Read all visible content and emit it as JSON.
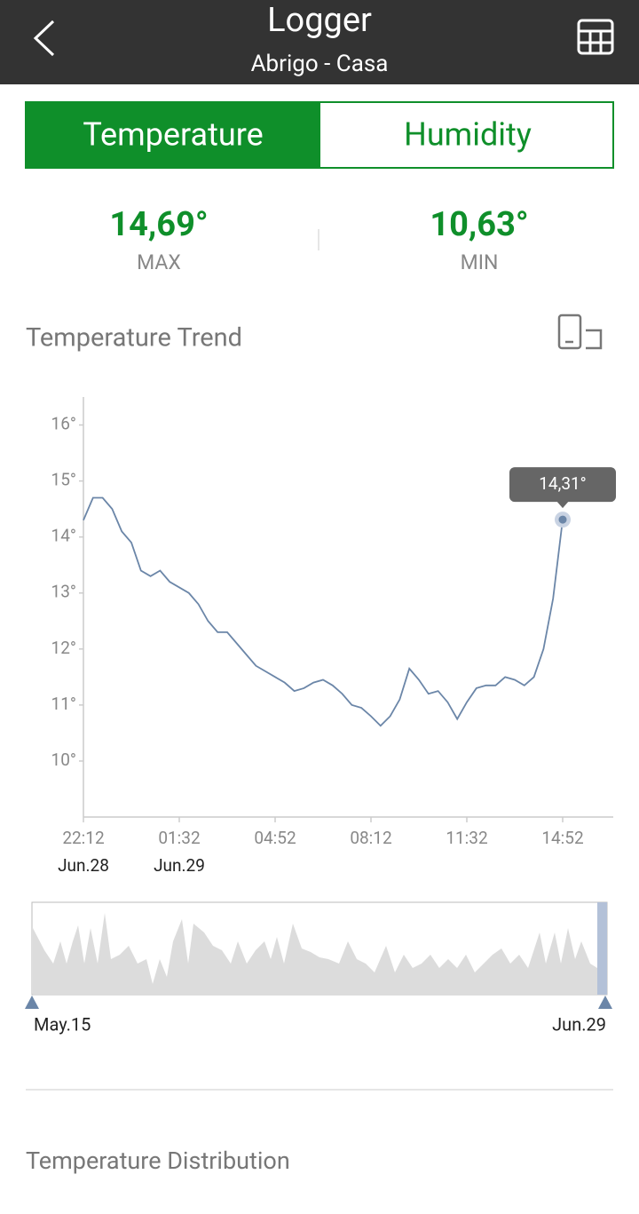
{
  "header": {
    "title": "Logger",
    "subtitle": "Abrigo - Casa"
  },
  "tabs": [
    "Temperature",
    "Humidity"
  ],
  "stats": [
    {
      "value": "14,69°",
      "label": "MAX"
    },
    {
      "value": "10,63°",
      "label": "MIN"
    }
  ],
  "chart_data": {
    "type": "line",
    "title": "Temperature Trend",
    "color": "#6b86a8",
    "categories": [
      "22:12",
      null,
      null,
      null,
      null,
      null,
      null,
      null,
      null,
      null,
      "01:32",
      null,
      null,
      null,
      null,
      null,
      null,
      null,
      null,
      null,
      "04:52",
      null,
      null,
      null,
      null,
      null,
      null,
      null,
      null,
      null,
      "08:12",
      null,
      null,
      null,
      null,
      null,
      null,
      null,
      null,
      null,
      "11:32",
      null,
      null,
      null,
      null,
      null,
      null,
      null,
      null,
      null,
      "14:52"
    ],
    "category_dates": [
      "Jun.28",
      null,
      null,
      null,
      null,
      null,
      null,
      null,
      null,
      null,
      "Jun.29",
      null,
      null,
      null,
      null,
      null,
      null,
      null,
      null,
      null,
      null,
      null,
      null,
      null,
      null,
      null,
      null,
      null,
      null,
      null,
      null,
      null,
      null,
      null,
      null,
      null,
      null,
      null,
      null,
      null,
      null,
      null,
      null,
      null,
      null,
      null,
      null,
      null,
      null,
      null,
      null
    ],
    "values": [
      14.3,
      14.7,
      14.7,
      14.5,
      14.1,
      13.9,
      13.4,
      13.3,
      13.4,
      13.2,
      13.1,
      13.0,
      12.8,
      12.5,
      12.3,
      12.3,
      12.1,
      11.9,
      11.7,
      11.6,
      11.5,
      11.4,
      11.25,
      11.3,
      11.4,
      11.45,
      11.35,
      11.2,
      11.0,
      10.95,
      10.8,
      10.63,
      10.8,
      11.1,
      11.65,
      11.45,
      11.2,
      11.25,
      11.05,
      10.75,
      11.05,
      11.3,
      11.35,
      11.35,
      11.5,
      11.45,
      11.35,
      11.5,
      12.0,
      12.9,
      14.31
    ],
    "value_labels": [
      null,
      null,
      null,
      null,
      null,
      null,
      null,
      null,
      null,
      null,
      null,
      null,
      null,
      null,
      null,
      null,
      null,
      null,
      null,
      null,
      null,
      null,
      null,
      null,
      null,
      null,
      null,
      null,
      null,
      null,
      null,
      null,
      null,
      null,
      null,
      null,
      null,
      null,
      null,
      null,
      null,
      null,
      null,
      null,
      null,
      null,
      null,
      null,
      null,
      null,
      "14,31°"
    ],
    "ylim": [
      9,
      16.5
    ],
    "yticks": [
      {
        "value": 10,
        "label": "10°"
      },
      {
        "value": 11,
        "label": "11°"
      },
      {
        "value": 12,
        "label": "12°"
      },
      {
        "value": 13,
        "label": "13°"
      },
      {
        "value": 14,
        "label": "14°"
      },
      {
        "value": 15,
        "label": "15°"
      },
      {
        "value": 16,
        "label": "16°"
      }
    ],
    "grid": false
  },
  "overview": {
    "start": "May.15",
    "end": "Jun.29"
  },
  "sections": [
    "Temperature Distribution"
  ]
}
